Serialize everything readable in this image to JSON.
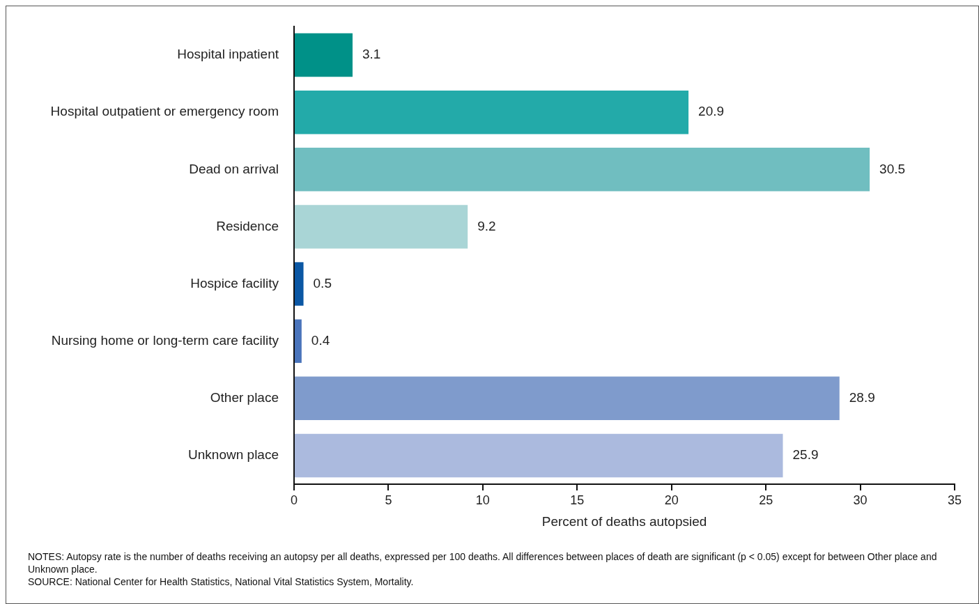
{
  "chart_data": {
    "type": "bar",
    "orientation": "horizontal",
    "xlabel": "Percent of deaths autopsied",
    "categories": [
      "Hospital inpatient",
      "Hospital outpatient or emergency room",
      "Dead on arrival",
      "Residence",
      "Hospice facility",
      "Nursing home or long-term care facility",
      "Other place",
      "Unknown place"
    ],
    "values": [
      3.1,
      20.9,
      30.5,
      9.2,
      0.5,
      0.4,
      28.9,
      25.9
    ],
    "colors": [
      "#009188",
      "#23aaa9",
      "#70bec0",
      "#a9d5d6",
      "#0b57a4",
      "#4a74bb",
      "#7f9bcc",
      "#abbade"
    ],
    "xlim": [
      0,
      35
    ],
    "xticks": [
      0,
      5,
      10,
      15,
      20,
      25,
      30,
      35
    ],
    "data_labels": true,
    "grid": false,
    "legend": false,
    "annotations": [
      "NOTES: Autopsy rate is the number of deaths receiving an autopsy per all deaths, expressed per 100 deaths. All differences between places of death are significant (p < 0.05) except for between Other place and Unknown place.",
      "SOURCE: National Center for Health Statistics, National Vital Statistics System, Mortality."
    ]
  }
}
